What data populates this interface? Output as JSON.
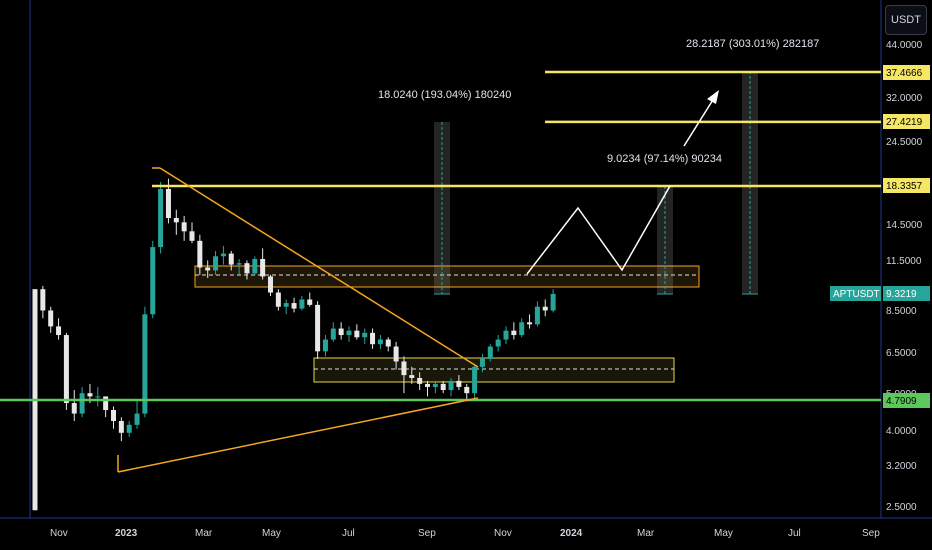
{
  "currency": "USDT",
  "chart_data": {
    "type": "candlestick",
    "symbol": "APTUSDT",
    "last_price": 9.3219,
    "y_scale": "log",
    "ylim": [
      2.3,
      58
    ],
    "y_ticks": [
      "44.0000",
      "32.0000",
      "24.5000",
      "14.5000",
      "11.5000",
      "8.5000",
      "6.5000",
      "5.0000",
      "4.0000",
      "3.2000",
      "2.5000"
    ],
    "x_ticks": [
      "Nov",
      "2023",
      "Mar",
      "May",
      "Jul",
      "Sep",
      "Nov",
      "2024",
      "Mar",
      "May",
      "Jul",
      "Sep"
    ],
    "level_tags": [
      {
        "value": "37.4666",
        "color": "#f5e663"
      },
      {
        "value": "27.4219",
        "color": "#f5e663"
      },
      {
        "value": "18.3357",
        "color": "#f5e663"
      },
      {
        "value": "4.7909",
        "color": "#5cc85c"
      }
    ],
    "levels": [
      {
        "price": 37.4666,
        "color": "#f5e663"
      },
      {
        "price": 27.4219,
        "color": "#f5e663"
      },
      {
        "price": 18.3357,
        "color": "#f5e663"
      },
      {
        "price": 4.7909,
        "color": "#5cc85c"
      }
    ],
    "annotations": [
      "18.0240 (193.04%) 180240",
      "9.0234 (97.14%) 90234",
      "28.2187 (303.01%) 282187"
    ],
    "candles": [
      [
        9.6,
        9.6,
        2.4,
        2.4
      ],
      [
        9.6,
        9.8,
        8.0,
        8.4
      ],
      [
        8.4,
        8.6,
        7.3,
        7.6
      ],
      [
        7.6,
        8.0,
        7.0,
        7.2
      ],
      [
        7.2,
        7.3,
        4.5,
        4.7
      ],
      [
        4.7,
        5.1,
        4.2,
        4.4
      ],
      [
        4.4,
        5.2,
        4.3,
        5.0
      ],
      [
        5.0,
        5.3,
        4.7,
        4.9
      ],
      [
        4.9,
        5.2,
        4.6,
        4.9
      ],
      [
        4.9,
        4.9,
        4.3,
        4.5
      ],
      [
        4.5,
        4.6,
        4.0,
        4.2
      ],
      [
        4.2,
        4.3,
        3.7,
        3.9
      ],
      [
        3.9,
        4.2,
        3.8,
        4.1
      ],
      [
        4.1,
        4.8,
        4.0,
        4.4
      ],
      [
        4.4,
        8.6,
        4.3,
        8.2
      ],
      [
        8.2,
        13.0,
        8.0,
        12.5
      ],
      [
        12.5,
        18.8,
        12.0,
        18.0
      ],
      [
        18.0,
        19.2,
        14.5,
        15.0
      ],
      [
        15.0,
        15.8,
        13.5,
        14.6
      ],
      [
        14.6,
        15.2,
        13.0,
        13.8
      ],
      [
        13.8,
        14.6,
        12.8,
        13.0
      ],
      [
        13.0,
        13.5,
        10.5,
        11.0
      ],
      [
        11.0,
        11.5,
        10.3,
        10.8
      ],
      [
        10.8,
        12.2,
        10.5,
        11.8
      ],
      [
        11.8,
        12.6,
        11.2,
        12.0
      ],
      [
        12.0,
        12.2,
        10.8,
        11.2
      ],
      [
        11.2,
        11.6,
        10.5,
        11.3
      ],
      [
        11.3,
        11.5,
        10.2,
        10.6
      ],
      [
        10.6,
        11.8,
        10.5,
        11.6
      ],
      [
        11.6,
        12.4,
        10.2,
        10.4
      ],
      [
        10.4,
        10.5,
        9.2,
        9.4
      ],
      [
        9.4,
        9.6,
        8.4,
        8.6
      ],
      [
        8.6,
        9.0,
        8.2,
        8.8
      ],
      [
        8.8,
        9.1,
        8.3,
        8.5
      ],
      [
        8.5,
        9.2,
        8.4,
        9.0
      ],
      [
        9.0,
        9.4,
        8.6,
        8.7
      ],
      [
        8.7,
        8.9,
        6.2,
        6.5
      ],
      [
        6.5,
        7.2,
        6.3,
        7.0
      ],
      [
        7.0,
        7.8,
        6.9,
        7.5
      ],
      [
        7.5,
        7.8,
        7.0,
        7.2
      ],
      [
        7.2,
        7.6,
        6.9,
        7.4
      ],
      [
        7.4,
        7.7,
        7.0,
        7.1
      ],
      [
        7.1,
        7.5,
        6.8,
        7.3
      ],
      [
        7.3,
        7.5,
        6.6,
        6.8
      ],
      [
        6.8,
        7.2,
        6.6,
        7.0
      ],
      [
        7.0,
        7.1,
        6.5,
        6.7
      ],
      [
        6.7,
        6.9,
        5.8,
        6.1
      ],
      [
        6.1,
        6.3,
        5.0,
        5.6
      ],
      [
        5.6,
        5.9,
        5.3,
        5.5
      ],
      [
        5.5,
        5.7,
        5.1,
        5.3
      ],
      [
        5.3,
        5.4,
        4.9,
        5.2
      ],
      [
        5.2,
        5.4,
        5.0,
        5.3
      ],
      [
        5.3,
        5.4,
        5.0,
        5.1
      ],
      [
        5.1,
        5.5,
        4.9,
        5.4
      ],
      [
        5.4,
        5.6,
        5.1,
        5.2
      ],
      [
        5.2,
        5.3,
        4.8,
        5.0
      ],
      [
        5.0,
        6.0,
        4.8,
        5.9
      ],
      [
        5.9,
        6.4,
        5.7,
        6.2
      ],
      [
        6.2,
        6.8,
        6.1,
        6.7
      ],
      [
        6.7,
        7.2,
        6.5,
        7.0
      ],
      [
        7.0,
        7.6,
        6.8,
        7.4
      ],
      [
        7.4,
        7.8,
        7.0,
        7.2
      ],
      [
        7.2,
        8.0,
        7.1,
        7.8
      ],
      [
        7.8,
        8.2,
        7.5,
        7.7
      ],
      [
        7.7,
        8.9,
        7.6,
        8.6
      ],
      [
        8.6,
        9.0,
        8.1,
        8.4
      ],
      [
        8.4,
        9.6,
        8.3,
        9.32
      ]
    ]
  }
}
